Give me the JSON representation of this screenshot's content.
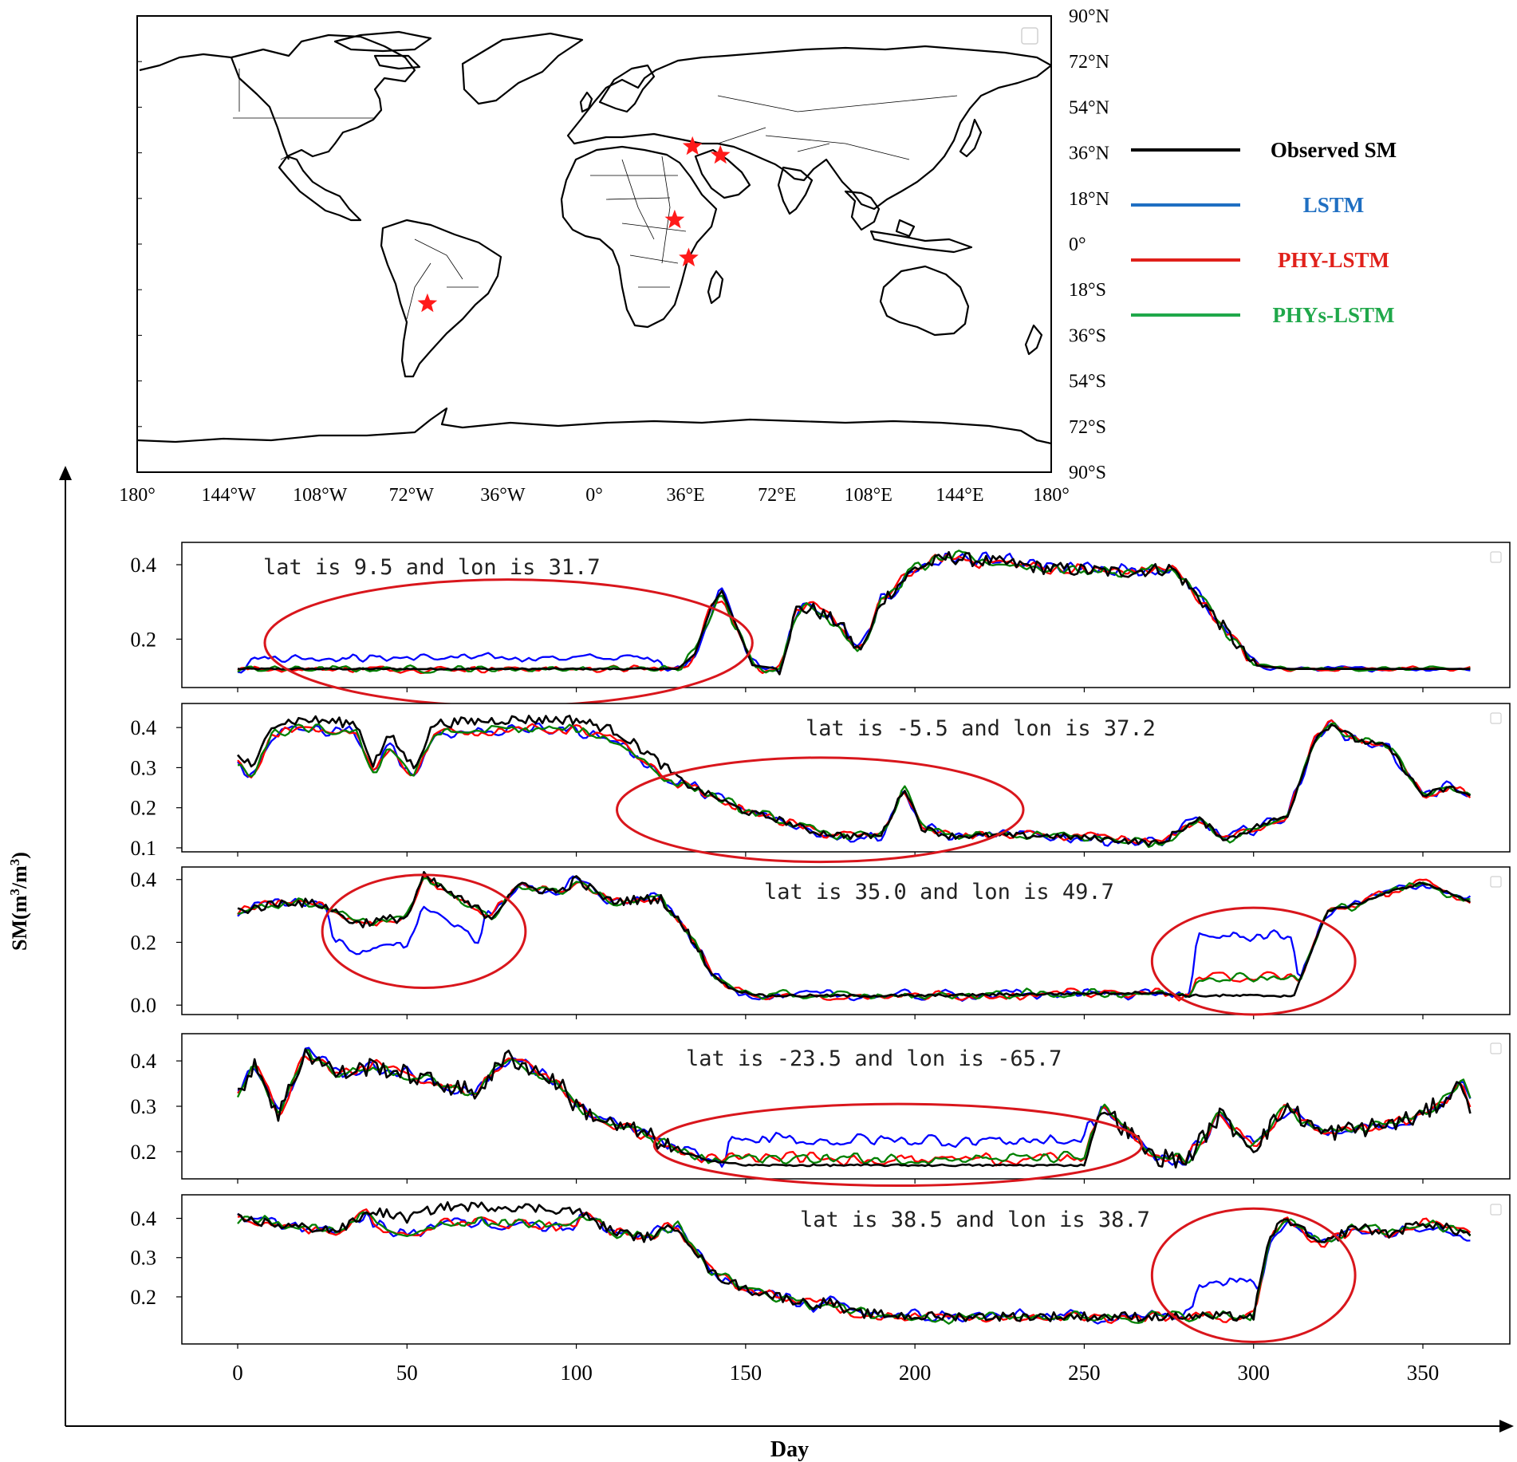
{
  "map": {
    "lat_labels": [
      "90°N",
      "72°N",
      "54°N",
      "36°N",
      "18°N",
      "0°",
      "18°S",
      "36°S",
      "54°S",
      "72°S",
      "90°S"
    ],
    "lon_labels": [
      "180°",
      "144°W",
      "108°W",
      "72°W",
      "36°W",
      "0°",
      "36°E",
      "72°E",
      "108°E",
      "144°E",
      "180°"
    ],
    "sites": [
      {
        "lat": 9.5,
        "lon": 31.7
      },
      {
        "lat": -5.5,
        "lon": 37.2
      },
      {
        "lat": 35.0,
        "lon": 49.7
      },
      {
        "lat": -23.5,
        "lon": -65.7
      },
      {
        "lat": 38.5,
        "lon": 38.7
      }
    ],
    "star_color": "#ff1a1a"
  },
  "legend": [
    {
      "label": "Observed SM",
      "color": "#000000"
    },
    {
      "label": "LSTM",
      "color": "#1f6fc2"
    },
    {
      "label": "PHY-LSTM",
      "color": "#e0201a"
    },
    {
      "label": "PHYs-LSTM",
      "color": "#1fa84a"
    }
  ],
  "axes": {
    "xlabel": "Day",
    "ylabel_main": "SM(m",
    "ylabel_sup1": "3",
    "ylabel_mid": "/m",
    "ylabel_sup2": "3",
    "ylabel_end": ")"
  },
  "chart_data": {
    "type": "line",
    "x_range": [
      0,
      364
    ],
    "x_ticks": [
      0,
      50,
      100,
      150,
      200,
      250,
      300,
      350
    ],
    "series_colors": {
      "Observed SM": "#000000",
      "LSTM": "#0000ff",
      "PHY-LSTM": "#ff0000",
      "PHYs-LSTM": "#008000"
    },
    "panels": [
      {
        "title": "lat is 9.5 and lon is 31.7",
        "ylim": [
          0.07,
          0.46
        ],
        "yticks": [
          0.2,
          0.4
        ],
        "tick_labels": [
          "0.2",
          "0.4"
        ],
        "observed_knots": [
          [
            0,
            0.12
          ],
          [
            130,
            0.12
          ],
          [
            135,
            0.16
          ],
          [
            140,
            0.29
          ],
          [
            143,
            0.33
          ],
          [
            148,
            0.22
          ],
          [
            152,
            0.13
          ],
          [
            160,
            0.12
          ],
          [
            165,
            0.28
          ],
          [
            170,
            0.28
          ],
          [
            178,
            0.24
          ],
          [
            183,
            0.17
          ],
          [
            186,
            0.2
          ],
          [
            190,
            0.3
          ],
          [
            200,
            0.39
          ],
          [
            210,
            0.42
          ],
          [
            220,
            0.41
          ],
          [
            240,
            0.39
          ],
          [
            260,
            0.38
          ],
          [
            276,
            0.39
          ],
          [
            285,
            0.3
          ],
          [
            300,
            0.13
          ],
          [
            310,
            0.12
          ],
          [
            364,
            0.12
          ]
        ],
        "noise": {
          "observed": [
            [
              0,
              130,
              0.002
            ],
            [
              160,
              300,
              0.018
            ]
          ],
          "models": [
            [
              0,
              130,
              0.012
            ],
            [
              130,
              300,
              0.025
            ],
            [
              300,
              364,
              0.008
            ]
          ]
        },
        "lstm_bias": [
          [
            3,
            125,
            0.03
          ]
        ],
        "ellipses": [
          {
            "x_center": 80,
            "x_radius": 72,
            "y_center": 0.19,
            "y_radius": 0.17
          }
        ]
      },
      {
        "title": "lat is -5.5 and lon is 37.2",
        "ylim": [
          0.09,
          0.46
        ],
        "yticks": [
          0.1,
          0.2,
          0.3,
          0.4
        ],
        "tick_labels": [
          "0.1",
          "0.2",
          "0.3",
          "0.4"
        ],
        "observed_knots": [
          [
            0,
            0.33
          ],
          [
            5,
            0.3
          ],
          [
            10,
            0.41
          ],
          [
            20,
            0.42
          ],
          [
            35,
            0.41
          ],
          [
            40,
            0.31
          ],
          [
            45,
            0.38
          ],
          [
            52,
            0.3
          ],
          [
            58,
            0.41
          ],
          [
            80,
            0.42
          ],
          [
            100,
            0.42
          ],
          [
            112,
            0.39
          ],
          [
            122,
            0.33
          ],
          [
            132,
            0.26
          ],
          [
            140,
            0.23
          ],
          [
            150,
            0.19
          ],
          [
            160,
            0.17
          ],
          [
            170,
            0.14
          ],
          [
            180,
            0.13
          ],
          [
            190,
            0.13
          ],
          [
            197,
            0.25
          ],
          [
            202,
            0.15
          ],
          [
            210,
            0.13
          ],
          [
            240,
            0.13
          ],
          [
            260,
            0.12
          ],
          [
            273,
            0.11
          ],
          [
            277,
            0.14
          ],
          [
            284,
            0.17
          ],
          [
            292,
            0.12
          ],
          [
            300,
            0.15
          ],
          [
            310,
            0.18
          ],
          [
            318,
            0.37
          ],
          [
            323,
            0.41
          ],
          [
            330,
            0.37
          ],
          [
            340,
            0.35
          ],
          [
            350,
            0.23
          ],
          [
            358,
            0.25
          ],
          [
            364,
            0.23
          ]
        ],
        "noise": {
          "observed": [
            [
              0,
              130,
              0.012
            ],
            [
              130,
              364,
              0.008
            ]
          ],
          "models": [
            [
              0,
              364,
              0.018
            ]
          ]
        },
        "model_offsets": [
          [
            0,
            130,
            -0.025
          ]
        ],
        "ellipses": [
          {
            "x_center": 172,
            "x_radius": 60,
            "y_center": 0.195,
            "y_radius": 0.13
          }
        ]
      },
      {
        "title": "lat is 35.0 and lon is 49.7",
        "ylim": [
          -0.03,
          0.44
        ],
        "yticks": [
          0.0,
          0.2,
          0.4
        ],
        "tick_labels": [
          "0.0",
          "0.2",
          "0.4"
        ],
        "observed_knots": [
          [
            0,
            0.3
          ],
          [
            15,
            0.33
          ],
          [
            25,
            0.32
          ],
          [
            35,
            0.26
          ],
          [
            50,
            0.28
          ],
          [
            55,
            0.41
          ],
          [
            65,
            0.34
          ],
          [
            75,
            0.28
          ],
          [
            82,
            0.38
          ],
          [
            95,
            0.36
          ],
          [
            100,
            0.4
          ],
          [
            110,
            0.33
          ],
          [
            125,
            0.34
          ],
          [
            135,
            0.2
          ],
          [
            140,
            0.1
          ],
          [
            146,
            0.05
          ],
          [
            155,
            0.03
          ],
          [
            200,
            0.03
          ],
          [
            270,
            0.04
          ],
          [
            280,
            0.03
          ],
          [
            312,
            0.03
          ],
          [
            318,
            0.2
          ],
          [
            322,
            0.3
          ],
          [
            330,
            0.32
          ],
          [
            340,
            0.36
          ],
          [
            350,
            0.39
          ],
          [
            364,
            0.33
          ]
        ],
        "noise": {
          "observed": [
            [
              0,
              140,
              0.015
            ],
            [
              140,
              364,
              0.004
            ]
          ],
          "models": [
            [
              0,
              364,
              0.02
            ]
          ]
        },
        "lstm_bias": [
          [
            28,
            72,
            -0.09
          ],
          [
            283,
            312,
            0.13
          ]
        ],
        "model_offsets": [
          [
            283,
            312,
            0.06
          ]
        ],
        "ellipses": [
          {
            "x_center": 55,
            "x_radius": 30,
            "y_center": 0.235,
            "y_radius": 0.18
          },
          {
            "x_center": 300,
            "x_radius": 30,
            "y_center": 0.14,
            "y_radius": 0.17
          }
        ]
      },
      {
        "title": "lat is -23.5 and lon is -65.7",
        "ylim": [
          0.14,
          0.46
        ],
        "yticks": [
          0.2,
          0.3,
          0.4
        ],
        "tick_labels": [
          "0.2",
          "0.3",
          "0.4"
        ],
        "observed_knots": [
          [
            0,
            0.32
          ],
          [
            5,
            0.4
          ],
          [
            12,
            0.28
          ],
          [
            20,
            0.42
          ],
          [
            30,
            0.37
          ],
          [
            40,
            0.39
          ],
          [
            55,
            0.36
          ],
          [
            70,
            0.33
          ],
          [
            80,
            0.41
          ],
          [
            95,
            0.35
          ],
          [
            100,
            0.3
          ],
          [
            110,
            0.26
          ],
          [
            120,
            0.24
          ],
          [
            130,
            0.2
          ],
          [
            140,
            0.18
          ],
          [
            150,
            0.17
          ],
          [
            200,
            0.17
          ],
          [
            250,
            0.17
          ],
          [
            255,
            0.3
          ],
          [
            262,
            0.25
          ],
          [
            270,
            0.19
          ],
          [
            280,
            0.18
          ],
          [
            290,
            0.28
          ],
          [
            300,
            0.21
          ],
          [
            310,
            0.3
          ],
          [
            320,
            0.24
          ],
          [
            340,
            0.26
          ],
          [
            350,
            0.28
          ],
          [
            362,
            0.35
          ],
          [
            364,
            0.3
          ]
        ],
        "noise": {
          "observed": [
            [
              0,
              130,
              0.02
            ],
            [
              130,
              254,
              0.002
            ],
            [
              254,
              364,
              0.02
            ]
          ],
          "models": [
            [
              0,
              364,
              0.018
            ]
          ]
        },
        "lstm_bias": [
          [
            145,
            252,
            0.04
          ]
        ],
        "model_offsets": [
          [
            145,
            252,
            0.015
          ]
        ],
        "ellipses": [
          {
            "x_center": 195,
            "x_radius": 72,
            "y_center": 0.215,
            "y_radius": 0.09
          }
        ]
      },
      {
        "title": "lat is 38.5 and lon is 38.7",
        "ylim": [
          0.08,
          0.46
        ],
        "yticks": [
          0.2,
          0.3,
          0.4
        ],
        "tick_labels": [
          "0.2",
          "0.3",
          "0.4"
        ],
        "observed_knots": [
          [
            0,
            0.4
          ],
          [
            15,
            0.38
          ],
          [
            30,
            0.37
          ],
          [
            40,
            0.42
          ],
          [
            50,
            0.4
          ],
          [
            60,
            0.43
          ],
          [
            80,
            0.43
          ],
          [
            100,
            0.42
          ],
          [
            110,
            0.37
          ],
          [
            120,
            0.35
          ],
          [
            130,
            0.38
          ],
          [
            140,
            0.26
          ],
          [
            150,
            0.22
          ],
          [
            160,
            0.2
          ],
          [
            170,
            0.18
          ],
          [
            175,
            0.19
          ],
          [
            180,
            0.16
          ],
          [
            200,
            0.15
          ],
          [
            250,
            0.15
          ],
          [
            270,
            0.15
          ],
          [
            300,
            0.15
          ],
          [
            305,
            0.36
          ],
          [
            310,
            0.4
          ],
          [
            320,
            0.33
          ],
          [
            330,
            0.38
          ],
          [
            340,
            0.36
          ],
          [
            350,
            0.39
          ],
          [
            364,
            0.36
          ]
        ],
        "noise": {
          "observed": [
            [
              0,
              364,
              0.012
            ]
          ],
          "models": [
            [
              0,
              364,
              0.02
            ]
          ]
        },
        "model_offsets": [
          [
            40,
            100,
            -0.04
          ]
        ],
        "lstm_bias": [
          [
            283,
            300,
            0.09
          ]
        ],
        "ellipses": [
          {
            "x_center": 300,
            "x_radius": 30,
            "y_center": 0.255,
            "y_radius": 0.17
          }
        ]
      }
    ]
  }
}
